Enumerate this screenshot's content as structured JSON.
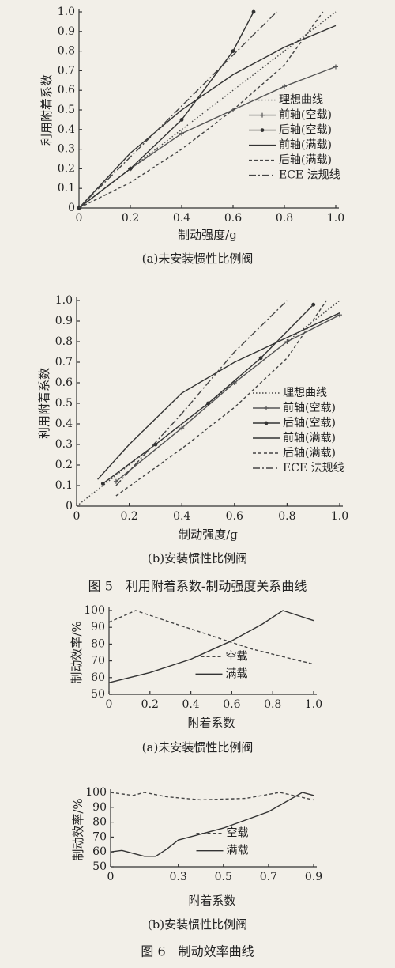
{
  "chart_data": [
    {
      "type": "line",
      "caption": "(a)未安装惯性比例阀",
      "xlabel": "制动强度/g",
      "ylabel": "利用附着系数",
      "xlim": [
        0,
        1
      ],
      "ylim": [
        0,
        1
      ],
      "xticks": [
        0,
        0.2,
        0.4,
        0.6,
        0.8,
        {
          "value": 1,
          "label": "1.0"
        }
      ],
      "yticks": [
        0,
        0.1,
        0.2,
        0.3,
        0.4,
        0.5,
        0.6,
        0.7,
        0.8,
        0.9,
        {
          "value": 1,
          "label": "1.0"
        }
      ],
      "legend": "right",
      "series": [
        {
          "name": "理想曲线",
          "color": "#444",
          "line_style": "dotted",
          "marker": "none",
          "x": [
            0,
            1
          ],
          "values": [
            0,
            1
          ]
        },
        {
          "name": "前轴(空载)",
          "color": "#555",
          "line_style": "solid",
          "marker": "plus",
          "x": [
            0,
            0.2,
            0.4,
            0.6,
            0.8,
            1
          ],
          "values": [
            0,
            0.2,
            0.38,
            0.5,
            0.62,
            0.72
          ]
        },
        {
          "name": "后轴(空载)",
          "color": "#333",
          "line_style": "solid",
          "marker": "dot",
          "x": [
            0,
            0.2,
            0.4,
            0.6,
            0.68
          ],
          "values": [
            0,
            0.2,
            0.45,
            0.8,
            1
          ]
        },
        {
          "name": "前轴(满载)",
          "color": "#333",
          "line_style": "solid",
          "marker": "none",
          "x": [
            0,
            0.2,
            0.4,
            0.6,
            0.8,
            1
          ],
          "values": [
            0,
            0.28,
            0.5,
            0.68,
            0.82,
            0.93
          ]
        },
        {
          "name": "后轴(满载)",
          "color": "#444",
          "line_style": "dashed",
          "marker": "none",
          "x": [
            0,
            0.2,
            0.4,
            0.6,
            0.8,
            0.95
          ],
          "values": [
            0,
            0.13,
            0.3,
            0.5,
            0.73,
            1
          ]
        },
        {
          "name": "ECE 法规线",
          "color": "#444",
          "line_style": "dashdot",
          "marker": "none",
          "x": [
            0,
            0.2,
            0.4,
            0.6,
            0.77
          ],
          "values": [
            0,
            0.26,
            0.52,
            0.78,
            1
          ]
        }
      ]
    },
    {
      "type": "line",
      "caption": "(b)安装惯性比例阀",
      "xlabel": "制动强度/g",
      "ylabel": "利用附着系数",
      "xlim": [
        0,
        1
      ],
      "ylim": [
        0,
        1
      ],
      "xticks": [
        0,
        0.2,
        0.4,
        0.6,
        0.8,
        {
          "value": 1,
          "label": "1.0"
        }
      ],
      "yticks": [
        0,
        0.1,
        0.2,
        0.3,
        0.4,
        0.5,
        0.6,
        0.7,
        0.8,
        0.9,
        {
          "value": 1,
          "label": "1.0"
        }
      ],
      "legend": "right",
      "series": [
        {
          "name": "理想曲线",
          "color": "#444",
          "line_style": "dotted",
          "marker": "none",
          "x": [
            0,
            1
          ],
          "values": [
            0,
            1
          ]
        },
        {
          "name": "前轴(空载)",
          "color": "#555",
          "line_style": "solid",
          "marker": "plus",
          "x": [
            0.15,
            0.4,
            0.6,
            0.8,
            1
          ],
          "values": [
            0.12,
            0.38,
            0.6,
            0.8,
            0.93
          ]
        },
        {
          "name": "后轴(空载)",
          "color": "#333",
          "line_style": "solid",
          "marker": "dot",
          "x": [
            0.1,
            0.3,
            0.5,
            0.7,
            0.9
          ],
          "values": [
            0.11,
            0.3,
            0.5,
            0.72,
            0.98
          ]
        },
        {
          "name": "前轴(满载)",
          "color": "#333",
          "line_style": "solid",
          "marker": "none",
          "x": [
            0.08,
            0.2,
            0.4,
            0.6,
            0.8,
            1
          ],
          "values": [
            0.13,
            0.3,
            0.55,
            0.7,
            0.82,
            0.94
          ]
        },
        {
          "name": "后轴(满载)",
          "color": "#444",
          "line_style": "dashed",
          "marker": "none",
          "x": [
            0.15,
            0.4,
            0.6,
            0.8,
            0.95
          ],
          "values": [
            0.05,
            0.28,
            0.48,
            0.72,
            1
          ]
        },
        {
          "name": "ECE 法规线",
          "color": "#444",
          "line_style": "dashdot",
          "marker": "none",
          "x": [
            0.15,
            0.4,
            0.6,
            0.8
          ],
          "values": [
            0.1,
            0.45,
            0.75,
            1
          ]
        }
      ]
    },
    {
      "type": "line",
      "caption": "(a)未安装惯性比例阀",
      "xlabel": "附着系数",
      "ylabel": "制动效率/%",
      "xlim": [
        0,
        1
      ],
      "ylim": [
        50,
        100
      ],
      "xticks": [
        0,
        0.2,
        0.4,
        0.6,
        0.8,
        {
          "value": 1,
          "label": "1.0"
        }
      ],
      "yticks": [
        50,
        60,
        70,
        80,
        90,
        100
      ],
      "legend": "center",
      "series": [
        {
          "name": "空载",
          "color": "#444",
          "line_style": "dashed",
          "marker": "none",
          "x": [
            0,
            0.13,
            0.3,
            0.5,
            0.7,
            0.9,
            1
          ],
          "values": [
            93,
            100,
            93,
            85,
            77,
            71,
            68
          ]
        },
        {
          "name": "满载",
          "color": "#333",
          "line_style": "solid",
          "marker": "none",
          "x": [
            0,
            0.2,
            0.4,
            0.6,
            0.75,
            0.85,
            1
          ],
          "values": [
            57,
            63,
            71,
            82,
            92,
            100,
            94
          ]
        }
      ]
    },
    {
      "type": "line",
      "caption": "(b)安装惯性比例阀",
      "xlabel": "附着系数",
      "ylabel": "制动效率/%",
      "xlim": [
        0,
        0.9
      ],
      "ylim": [
        50,
        100
      ],
      "xticks": [
        0,
        0.3,
        0.5,
        0.7,
        0.9
      ],
      "yticks": [
        50,
        60,
        70,
        80,
        90,
        100
      ],
      "legend": "center",
      "series": [
        {
          "name": "空载",
          "color": "#444",
          "line_style": "dashed",
          "marker": "none",
          "x": [
            0,
            0.1,
            0.15,
            0.25,
            0.4,
            0.6,
            0.75,
            0.9
          ],
          "values": [
            100,
            98,
            100,
            97,
            95,
            96,
            100,
            95
          ]
        },
        {
          "name": "满载",
          "color": "#333",
          "line_style": "solid",
          "marker": "none",
          "x": [
            0,
            0.05,
            0.15,
            0.2,
            0.25,
            0.3,
            0.5,
            0.7,
            0.85,
            0.9
          ],
          "values": [
            60,
            61,
            57,
            57,
            62,
            68,
            76,
            87,
            100,
            98
          ]
        }
      ]
    }
  ],
  "figure_captions": [
    "图 5　利用附着系数-制动强度关系曲线",
    "图 6　制动效率曲线"
  ]
}
